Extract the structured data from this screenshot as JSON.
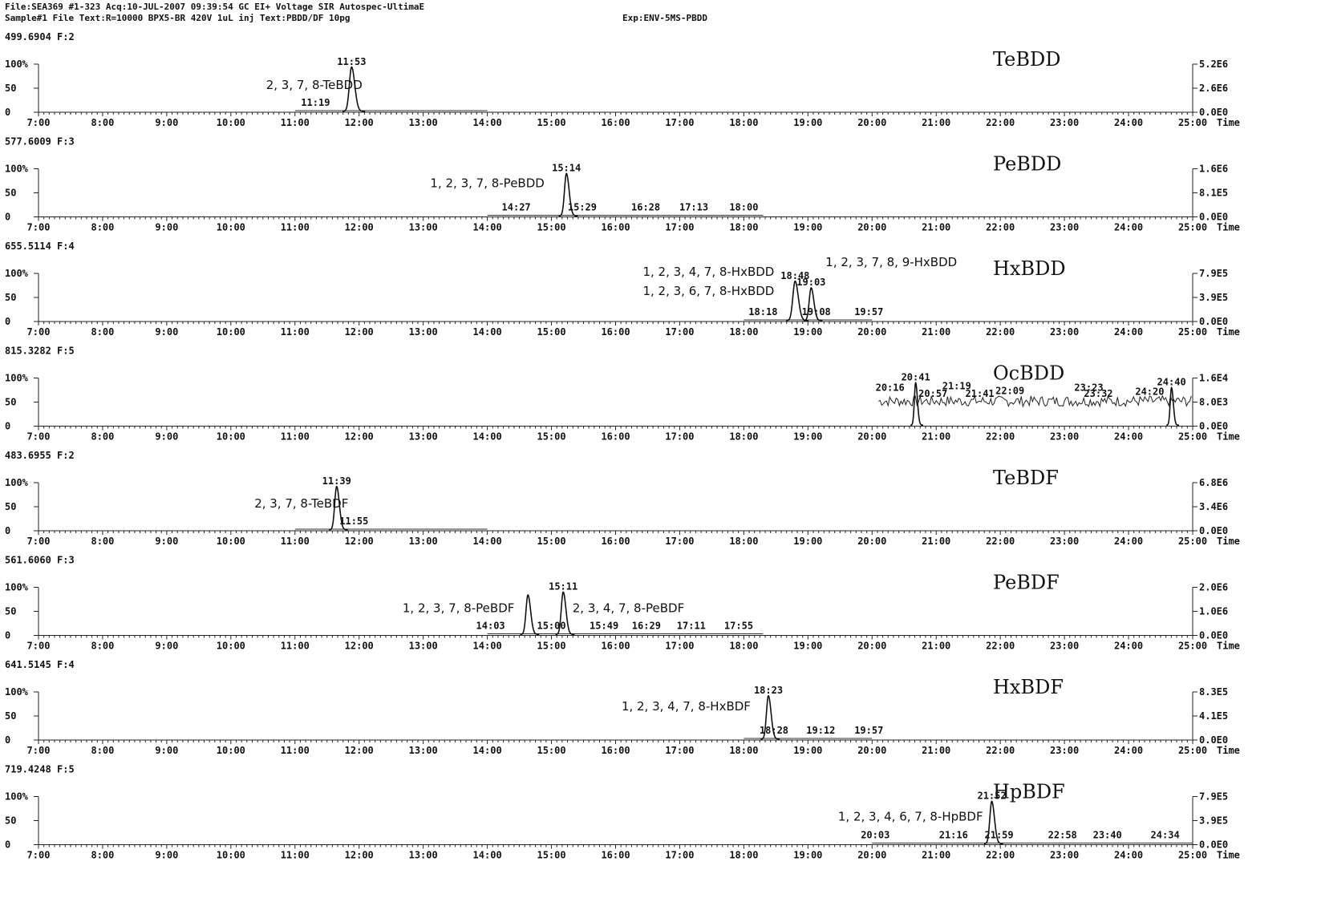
{
  "header": {
    "line1": "File:SEA369 #1-323 Acq:10-JUL-2007 09:39:54 GC EI+ Voltage SIR Autospec-UltimaE",
    "line2a": "Sample#1 File Text:R=10000 BPX5-BR 420V 1uL inj Text:PBDD/DF 10pg",
    "line2b": "Exp:ENV-5MS-PBDD"
  },
  "chart_data": {
    "type": "line",
    "x_unit": "Time",
    "x_ticks": [
      "7:00",
      "8:00",
      "9:00",
      "10:00",
      "11:00",
      "12:00",
      "13:00",
      "14:00",
      "15:00",
      "16:00",
      "17:00",
      "18:00",
      "19:00",
      "20:00",
      "21:00",
      "22:00",
      "23:00",
      "24:00",
      "25:00"
    ],
    "xlim": [
      "7:00",
      "25:00"
    ],
    "y_ticks": [
      "100%",
      "50",
      "0"
    ],
    "panels": [
      {
        "mass": "499.6904 F:2",
        "name": "TeBDD",
        "scale": [
          "5.2E6",
          "2.6E6",
          "0.0E0"
        ],
        "baseline": [
          11.0,
          14.0
        ],
        "peaks": [
          {
            "time": "11:53",
            "t": 11.883,
            "h": 92,
            "w": 0.035,
            "label": "11:53"
          }
        ],
        "time_labels": [
          {
            "text": "11:19",
            "t": 11.32,
            "h": 8
          }
        ],
        "compounds": [
          {
            "text": "2, 3, 7, 8-TeBDD",
            "t": 11.3,
            "h": 48
          }
        ]
      },
      {
        "mass": "577.6009 F:3",
        "name": "PeBDD",
        "scale": [
          "1.6E6",
          "8.1E5",
          "0.0E0"
        ],
        "baseline": [
          14.0,
          18.3
        ],
        "peaks": [
          {
            "time": "15:14",
            "t": 15.233,
            "h": 88,
            "w": 0.03,
            "label": "15:14"
          }
        ],
        "time_labels": [
          {
            "text": "14:27",
            "t": 14.45,
            "h": 8
          },
          {
            "text": "15:29",
            "t": 15.48,
            "h": 8
          },
          {
            "text": "16:28",
            "t": 16.47,
            "h": 8
          },
          {
            "text": "17:13",
            "t": 17.22,
            "h": 8
          },
          {
            "text": "18:00",
            "t": 18.0,
            "h": 8
          }
        ],
        "compounds": [
          {
            "text": "1, 2, 3, 7, 8-PeBDD",
            "t": 14.0,
            "h": 62
          }
        ]
      },
      {
        "mass": "655.5114 F:4",
        "name": "HxBDD",
        "scale": [
          "7.9E5",
          "3.9E5",
          "0.0E0"
        ],
        "baseline": [
          18.0,
          20.0
        ],
        "peaks": [
          {
            "time": "18:48",
            "t": 18.8,
            "h": 82,
            "w": 0.035,
            "label": "18:48"
          },
          {
            "time": "19:03",
            "t": 19.05,
            "h": 68,
            "w": 0.03,
            "label": "19:03"
          }
        ],
        "time_labels": [
          {
            "text": "18:18",
            "t": 18.3,
            "h": 8
          },
          {
            "text": "19:08",
            "t": 19.13,
            "h": 8
          },
          {
            "text": "19:57",
            "t": 19.95,
            "h": 8
          }
        ],
        "compounds": [
          {
            "text": "1, 2, 3, 4, 7, 8-HxBDD",
            "t": 17.45,
            "h": 95
          },
          {
            "text": "1, 2, 3, 6, 7, 8-HxBDD",
            "t": 17.45,
            "h": 55
          },
          {
            "text": "1, 2, 3, 7, 8, 9-HxBDD",
            "t": 20.3,
            "h": 115
          }
        ]
      },
      {
        "mass": "815.3282 F:5",
        "name": "OcBDD",
        "scale": [
          "1.6E4",
          "8.0E3",
          "0.0E0"
        ],
        "noise": [
          20.1,
          25.0,
          52
        ],
        "peaks": [
          {
            "time": "20:41",
            "t": 20.68,
            "h": 88,
            "w": 0.02,
            "label": "20:41"
          },
          {
            "time": "24:40",
            "t": 24.67,
            "h": 78,
            "w": 0.02,
            "label": "24:40"
          }
        ],
        "time_labels": [
          {
            "text": "20:16",
            "t": 20.28,
            "h": 68
          },
          {
            "text": "21:19",
            "t": 21.32,
            "h": 72
          },
          {
            "text": "20:57",
            "t": 20.95,
            "h": 56
          },
          {
            "text": "21:41",
            "t": 21.68,
            "h": 56
          },
          {
            "text": "22:09",
            "t": 22.15,
            "h": 62
          },
          {
            "text": "23:23",
            "t": 23.38,
            "h": 68
          },
          {
            "text": "23:32",
            "t": 23.53,
            "h": 56
          },
          {
            "text": "24:20",
            "t": 24.33,
            "h": 60
          }
        ],
        "compounds": []
      },
      {
        "mass": "483.6955 F:2",
        "name": "TeBDF",
        "scale": [
          "6.8E6",
          "3.4E6",
          "0.0E0"
        ],
        "baseline": [
          11.0,
          14.0
        ],
        "peaks": [
          {
            "time": "11:39",
            "t": 11.65,
            "h": 90,
            "w": 0.03,
            "label": "11:39"
          }
        ],
        "time_labels": [
          {
            "text": "11:55",
            "t": 11.92,
            "h": 8
          }
        ],
        "compounds": [
          {
            "text": "2, 3, 7, 8-TeBDF",
            "t": 11.1,
            "h": 48
          }
        ]
      },
      {
        "mass": "561.6060 F:3",
        "name": "PeBDF",
        "scale": [
          "2.0E6",
          "1.0E6",
          "0.0E0"
        ],
        "baseline": [
          14.0,
          18.3
        ],
        "peaks": [
          {
            "time": "14:38",
            "t": 14.633,
            "h": 82,
            "w": 0.03,
            "label": ""
          },
          {
            "time": "15:11",
            "t": 15.183,
            "h": 88,
            "w": 0.03,
            "label": "15:11"
          }
        ],
        "time_labels": [
          {
            "text": "14:03",
            "t": 14.05,
            "h": 8
          },
          {
            "text": "15:00",
            "t": 15.0,
            "h": 8
          },
          {
            "text": "15:49",
            "t": 15.82,
            "h": 8
          },
          {
            "text": "16:29",
            "t": 16.48,
            "h": 8
          },
          {
            "text": "17:11",
            "t": 17.18,
            "h": 8
          },
          {
            "text": "17:55",
            "t": 17.92,
            "h": 8
          }
        ],
        "compounds": [
          {
            "text": "1, 2, 3, 7, 8-PeBDF",
            "t": 13.55,
            "h": 48
          },
          {
            "text": "2, 3, 4, 7, 8-PeBDF",
            "t": 16.2,
            "h": 48
          }
        ]
      },
      {
        "mass": "641.5145 F:4",
        "name": "HxBDF",
        "scale": [
          "8.3E5",
          "4.1E5",
          "0.0E0"
        ],
        "baseline": [
          18.0,
          20.0
        ],
        "peaks": [
          {
            "time": "18:23",
            "t": 18.383,
            "h": 90,
            "w": 0.03,
            "label": "18:23"
          }
        ],
        "time_labels": [
          {
            "text": "18:28",
            "t": 18.47,
            "h": 8
          },
          {
            "text": "19:12",
            "t": 19.2,
            "h": 8
          },
          {
            "text": "19:57",
            "t": 19.95,
            "h": 8
          }
        ],
        "compounds": [
          {
            "text": "1, 2, 3, 4, 7, 8-HxBDF",
            "t": 17.1,
            "h": 62
          }
        ]
      },
      {
        "mass": "719.4248 F:5",
        "name": "HpBDF",
        "scale": [
          "7.9E5",
          "3.9E5",
          "0.0E0"
        ],
        "baseline": [
          20.0,
          25.0
        ],
        "peaks": [
          {
            "time": "21:52",
            "t": 21.867,
            "h": 88,
            "w": 0.03,
            "label": "21:52"
          }
        ],
        "time_labels": [
          {
            "text": "20:03",
            "t": 20.05,
            "h": 8
          },
          {
            "text": "21:16",
            "t": 21.27,
            "h": 8
          },
          {
            "text": "21:59",
            "t": 21.98,
            "h": 8
          },
          {
            "text": "22:58",
            "t": 22.97,
            "h": 8
          },
          {
            "text": "23:40",
            "t": 23.67,
            "h": 8
          },
          {
            "text": "24:34",
            "t": 24.57,
            "h": 8
          }
        ],
        "compounds": [
          {
            "text": "1, 2, 3, 4, 6, 7, 8-HpBDF",
            "t": 20.6,
            "h": 50
          }
        ]
      }
    ]
  }
}
